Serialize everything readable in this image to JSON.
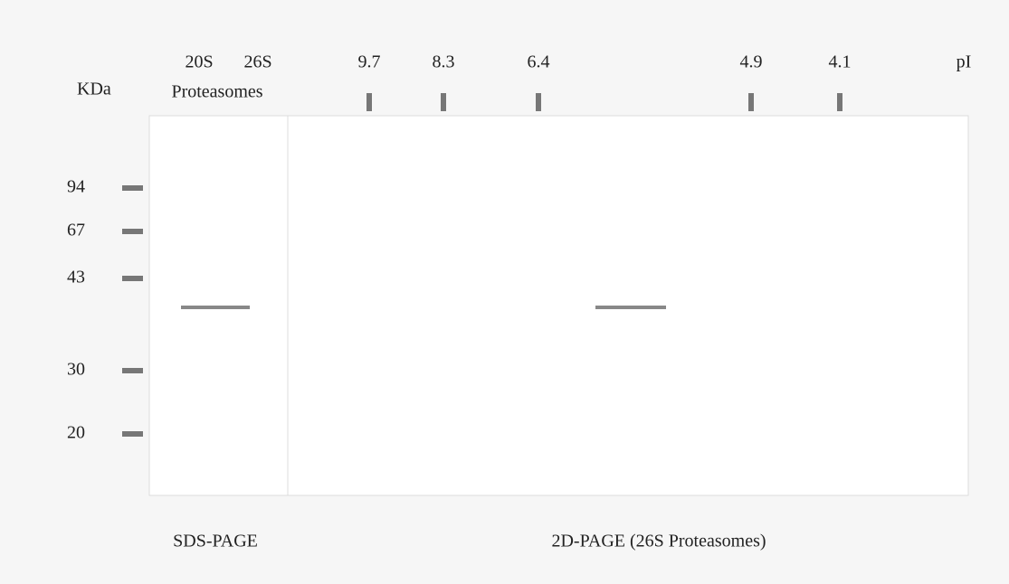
{
  "sds_page": {
    "kda_label": "KDa",
    "lanes": [
      "20S",
      "26S"
    ],
    "lane_caption": "Proteasomes",
    "markers": [
      "94",
      "67",
      "43",
      "30",
      "20"
    ],
    "caption": "SDS-PAGE"
  },
  "two_d_page": {
    "pi_values": [
      "9.7",
      "8.3",
      "6.4",
      "4.9",
      "4.1"
    ],
    "pi_label": "pI",
    "caption": "2D-PAGE (26S Proteasomes)"
  }
}
